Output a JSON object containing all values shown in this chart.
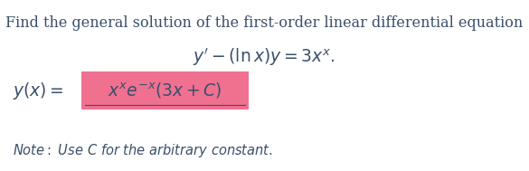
{
  "background_color": "#ffffff",
  "text_color": "#3a4f6b",
  "line1": "Find the general solution of the first-order linear differential equation",
  "line1_fontsize": 11.5,
  "line2": "$y' - (\\ln x)y = 3x^x.$",
  "line2_fontsize": 13.5,
  "answer_prefix": "$y(x) = $",
  "answer_prefix_fontsize": 13.5,
  "answer_content": "$x^x e^{-x}(3x + C)$",
  "answer_content_fontsize": 13.5,
  "answer_highlight_color": "#f07090",
  "note_text": "Note: Use $C$ for the arbitrary constant.",
  "note_fontsize": 10.5
}
